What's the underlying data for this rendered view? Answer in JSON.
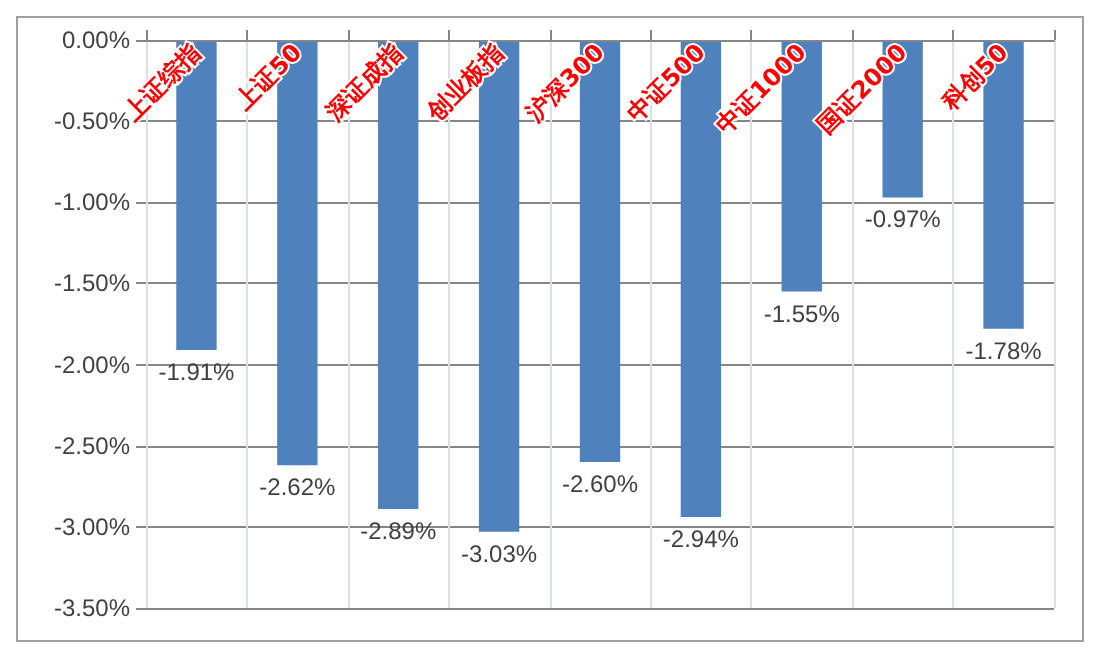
{
  "chart_data": {
    "type": "bar",
    "categories": [
      "上证综指",
      "上证50",
      "深证成指",
      "创业板指",
      "沪深300",
      "中证500",
      "中证1000",
      "国证2000",
      "科创50"
    ],
    "values": [
      -1.91,
      -2.62,
      -2.89,
      -3.03,
      -2.6,
      -2.94,
      -1.55,
      -0.97,
      -1.78
    ],
    "value_labels": [
      "-1.91%",
      "-2.62%",
      "-2.89%",
      "-3.03%",
      "-2.60%",
      "-2.94%",
      "-1.55%",
      "-0.97%",
      "-1.78%"
    ],
    "color": "#4f81bd",
    "ylim": [
      -3.5,
      0
    ],
    "yticks": [
      {
        "value": 0,
        "label": "0.00%"
      },
      {
        "value": -0.5,
        "label": "-0.50%"
      },
      {
        "value": -1,
        "label": "-1.00%"
      },
      {
        "value": -1.5,
        "label": "-1.50%"
      },
      {
        "value": -2,
        "label": "-2.00%"
      },
      {
        "value": -2.5,
        "label": "-2.50%"
      },
      {
        "value": -3,
        "label": "-3.00%"
      },
      {
        "value": -3.5,
        "label": "-3.50%"
      }
    ],
    "grid": true
  }
}
